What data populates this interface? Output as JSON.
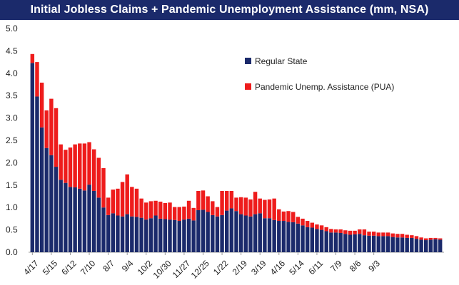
{
  "title": "Initial Jobless Claims + Pandemic Unemployment Assistance (mm, NSA)",
  "legend": [
    {
      "label": "Regular State",
      "color": "#1b2a6b"
    },
    {
      "label": "Pandemic Unemp. Assistance (PUA)",
      "color": "#ee1c1c"
    }
  ],
  "chart_data": {
    "type": "bar",
    "stacked": true,
    "title": "Initial Jobless Claims + Pandemic Unemployment Assistance (mm, NSA)",
    "xlabel": "",
    "ylabel": "",
    "ylim": [
      0,
      5.0
    ],
    "yticks": [
      "0.0",
      "0.5",
      "1.0",
      "1.5",
      "2.0",
      "2.5",
      "3.0",
      "3.5",
      "4.0",
      "4.5",
      "5.0"
    ],
    "xtick_labels": [
      "4/17",
      "5/15",
      "6/12",
      "7/10",
      "8/7",
      "9/4",
      "10/2",
      "10/30",
      "11/27",
      "12/25",
      "1/22",
      "2/19",
      "3/19",
      "4/16",
      "5/14",
      "6/11",
      "7/9",
      "8/6",
      "9/3"
    ],
    "legend_position": "top-right",
    "grid": false,
    "series": [
      {
        "name": "Regular State",
        "color": "#1b2a6b",
        "values": [
          4.23,
          3.48,
          2.79,
          2.33,
          2.17,
          1.91,
          1.62,
          1.55,
          1.46,
          1.45,
          1.42,
          1.38,
          1.51,
          1.37,
          1.22,
          1.0,
          0.83,
          0.87,
          0.82,
          0.8,
          0.85,
          0.8,
          0.79,
          0.77,
          0.73,
          0.76,
          0.82,
          0.75,
          0.74,
          0.73,
          0.72,
          0.7,
          0.73,
          0.75,
          0.71,
          0.94,
          0.95,
          0.9,
          0.83,
          0.8,
          0.83,
          0.93,
          0.98,
          0.92,
          0.85,
          0.82,
          0.8,
          0.85,
          0.87,
          0.76,
          0.76,
          0.72,
          0.7,
          0.7,
          0.68,
          0.67,
          0.64,
          0.6,
          0.56,
          0.55,
          0.52,
          0.5,
          0.47,
          0.44,
          0.44,
          0.43,
          0.41,
          0.39,
          0.4,
          0.41,
          0.38,
          0.37,
          0.37,
          0.36,
          0.36,
          0.36,
          0.34,
          0.33,
          0.33,
          0.32,
          0.32,
          0.3,
          0.28,
          0.27,
          0.28,
          0.29,
          0.28
        ]
      },
      {
        "name": "Pandemic Unemp. Assistance (PUA)",
        "color": "#ee1c1c",
        "values": [
          0.2,
          0.77,
          1.0,
          0.84,
          1.26,
          1.31,
          0.79,
          0.74,
          0.88,
          0.96,
          1.01,
          1.05,
          0.95,
          0.93,
          0.89,
          0.88,
          0.39,
          0.53,
          0.6,
          0.77,
          0.89,
          0.66,
          0.63,
          0.43,
          0.38,
          0.38,
          0.33,
          0.38,
          0.36,
          0.38,
          0.29,
          0.31,
          0.29,
          0.4,
          0.28,
          0.43,
          0.43,
          0.35,
          0.31,
          0.21,
          0.54,
          0.44,
          0.39,
          0.3,
          0.38,
          0.4,
          0.38,
          0.5,
          0.33,
          0.41,
          0.42,
          0.48,
          0.26,
          0.21,
          0.24,
          0.23,
          0.15,
          0.15,
          0.14,
          0.11,
          0.1,
          0.1,
          0.09,
          0.08,
          0.07,
          0.08,
          0.08,
          0.09,
          0.08,
          0.1,
          0.13,
          0.09,
          0.09,
          0.08,
          0.08,
          0.08,
          0.08,
          0.08,
          0.08,
          0.07,
          0.06,
          0.06,
          0.05,
          0.04,
          0.04,
          0.03,
          0.03
        ]
      }
    ]
  }
}
